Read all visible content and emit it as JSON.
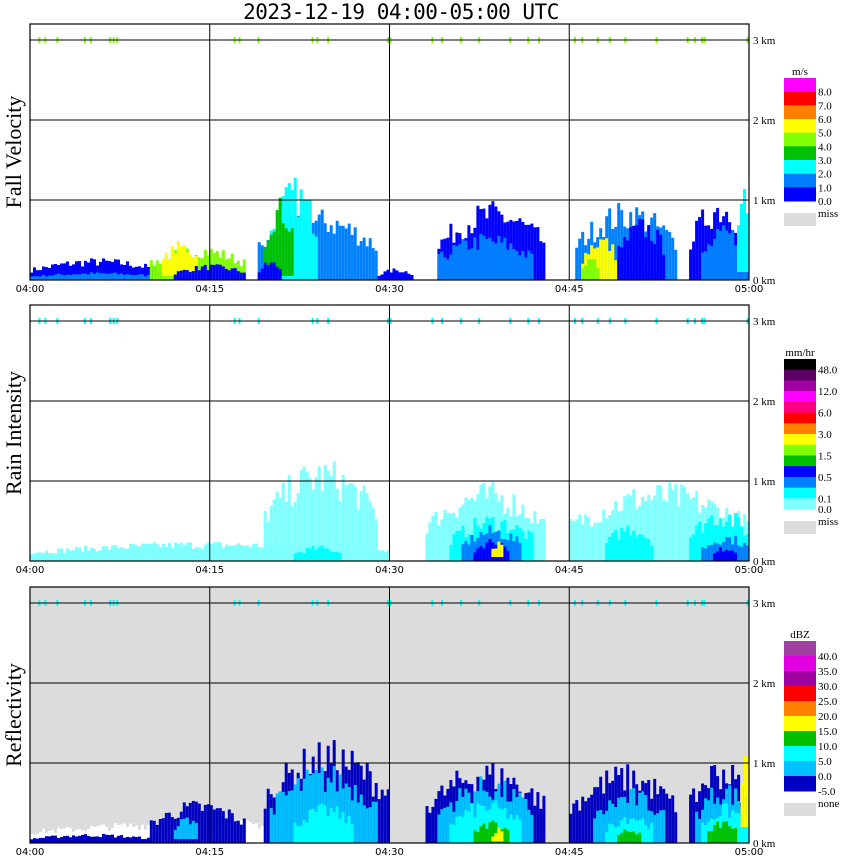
{
  "title": "2023-12-19   04:00-05:00 UTC",
  "chart_data": [
    {
      "type": "heatmap",
      "name": "fall-velocity",
      "ylabel": "Fall Velocity",
      "x_ticks": [
        "04:00",
        "04:15",
        "04:30",
        "04:45",
        "05:00"
      ],
      "x_range_minutes": [
        0,
        60
      ],
      "y_ticks": [
        "0 km",
        "1 km",
        "2 km",
        "3 km"
      ],
      "y_range_km": [
        0,
        3.2
      ],
      "grid": true,
      "background": "#ffffff",
      "legend": {
        "unit": "m/s",
        "position": "right",
        "colors": [
          "#ff00ff",
          "#ff0000",
          "#ff7f00",
          "#ffff00",
          "#7fff00",
          "#00c000",
          "#00ffff",
          "#0080ff",
          "#0000ff"
        ],
        "labels": [
          "8.0",
          "7.0",
          "6.0",
          "5.0",
          "4.0",
          "3.0",
          "2.0",
          "1.0",
          "0.0"
        ],
        "missing_label": "miss",
        "missing_color": "#dcdcdc"
      },
      "regions": [
        {
          "t0": 0,
          "t1": 11,
          "h0": 0,
          "h1": 0.28,
          "c": "#0000ff"
        },
        {
          "t0": 0,
          "t1": 11,
          "h0": 0,
          "h1": 0.1,
          "c": "#0080ff"
        },
        {
          "t0": 10,
          "t1": 18,
          "h0": 0,
          "h1": 0.45,
          "c": "#7fff00"
        },
        {
          "t0": 11,
          "t1": 14,
          "h0": 0.05,
          "h1": 0.5,
          "c": "#ffff00"
        },
        {
          "t0": 12,
          "t1": 18,
          "h0": 0,
          "h1": 0.2,
          "c": "#0000ff"
        },
        {
          "t0": 19,
          "t1": 29,
          "h0": 0,
          "h1": 0.9,
          "c": "#0080ff"
        },
        {
          "t0": 20,
          "t1": 24,
          "h0": 0,
          "h1": 1.3,
          "c": "#00ffff"
        },
        {
          "t0": 19.5,
          "t1": 22,
          "h0": 0.05,
          "h1": 1.05,
          "c": "#00c000"
        },
        {
          "t0": 19,
          "t1": 21,
          "h0": 0,
          "h1": 0.25,
          "c": "#0000ff"
        },
        {
          "t0": 29,
          "t1": 32,
          "h0": 0,
          "h1": 0.15,
          "c": "#0000ff"
        },
        {
          "t0": 34,
          "t1": 43,
          "h0": 0,
          "h1": 1.0,
          "c": "#0000ff"
        },
        {
          "t0": 34,
          "t1": 42,
          "h0": 0,
          "h1": 0.6,
          "c": "#0080ff"
        },
        {
          "t0": 45.5,
          "t1": 54,
          "h0": 0,
          "h1": 1.0,
          "c": "#0080ff"
        },
        {
          "t0": 46,
          "t1": 49,
          "h0": 0,
          "h1": 0.6,
          "c": "#ffff00"
        },
        {
          "t0": 46,
          "t1": 47.5,
          "h0": 0,
          "h1": 0.3,
          "c": "#7fff00"
        },
        {
          "t0": 49,
          "t1": 53,
          "h0": 0,
          "h1": 0.8,
          "c": "#0000ff"
        },
        {
          "t0": 55,
          "t1": 60,
          "h0": 0,
          "h1": 1.1,
          "c": "#0000ff"
        },
        {
          "t0": 56,
          "t1": 60,
          "h0": 0,
          "h1": 0.7,
          "c": "#0080ff"
        },
        {
          "t0": 59,
          "t1": 60,
          "h0": 0.1,
          "h1": 1.4,
          "c": "#00ffff"
        }
      ],
      "top_marks_color": "#7fff00"
    },
    {
      "type": "heatmap",
      "name": "rain-intensity",
      "ylabel": "Rain Intensity",
      "x_ticks": [
        "04:00",
        "04:15",
        "04:30",
        "04:45",
        "05:00"
      ],
      "x_range_minutes": [
        0,
        60
      ],
      "y_ticks": [
        "0 km",
        "1 km",
        "2 km",
        "3 km"
      ],
      "y_range_km": [
        0,
        3.2
      ],
      "grid": true,
      "background": "#ffffff",
      "legend": {
        "unit": "mm/hr",
        "position": "right",
        "colors": [
          "#000000",
          "#5a0060",
          "#a000a0",
          "#ff00ff",
          "#ff0080",
          "#ff0000",
          "#ff7f00",
          "#ffff00",
          "#7fff00",
          "#00c000",
          "#0000ff",
          "#0080ff",
          "#00ffff",
          "#80ffff"
        ],
        "labels": [
          "48.0",
          "12.0",
          "6.0",
          "3.0",
          "1.5",
          "0.5",
          "0.1",
          "0.0"
        ],
        "missing_label": "miss",
        "missing_color": "#dcdcdc"
      },
      "regions": [
        {
          "t0": 0,
          "t1": 30,
          "h0": 0,
          "h1": 0.25,
          "c": "#80ffff"
        },
        {
          "t0": 19.5,
          "t1": 29,
          "h0": 0,
          "h1": 1.3,
          "c": "#80ffff"
        },
        {
          "t0": 22,
          "t1": 26,
          "h0": 0,
          "h1": 0.2,
          "c": "#00ffff"
        },
        {
          "t0": 33,
          "t1": 43,
          "h0": 0,
          "h1": 1.0,
          "c": "#80ffff"
        },
        {
          "t0": 35,
          "t1": 42,
          "h0": 0,
          "h1": 0.6,
          "c": "#00ffff"
        },
        {
          "t0": 36,
          "t1": 41,
          "h0": 0,
          "h1": 0.45,
          "c": "#0080ff"
        },
        {
          "t0": 37,
          "t1": 40,
          "h0": 0,
          "h1": 0.3,
          "c": "#0000ff"
        },
        {
          "t0": 38.5,
          "t1": 39.5,
          "h0": 0.05,
          "h1": 0.25,
          "c": "#ffff00"
        },
        {
          "t0": 45,
          "t1": 60,
          "h0": 0,
          "h1": 1.0,
          "c": "#80ffff"
        },
        {
          "t0": 48,
          "t1": 52,
          "h0": 0,
          "h1": 0.5,
          "c": "#00ffff"
        },
        {
          "t0": 55,
          "t1": 60,
          "h0": 0,
          "h1": 0.7,
          "c": "#00ffff"
        },
        {
          "t0": 56,
          "t1": 60,
          "h0": 0,
          "h1": 0.35,
          "c": "#0080ff"
        },
        {
          "t0": 57,
          "t1": 59,
          "h0": 0,
          "h1": 0.2,
          "c": "#0000ff"
        }
      ],
      "top_marks_color": "#00ffff"
    },
    {
      "type": "heatmap",
      "name": "reflectivity",
      "ylabel": "Reflectivity",
      "x_ticks": [
        "04:00",
        "04:15",
        "04:30",
        "04:45",
        "05:00"
      ],
      "x_range_minutes": [
        0,
        60
      ],
      "y_ticks": [
        "0 km",
        "1 km",
        "2 km",
        "3 km"
      ],
      "y_range_km": [
        0,
        3.2
      ],
      "grid": true,
      "background": "#dcdcdc",
      "legend": {
        "unit": "dBZ",
        "position": "right",
        "colors": [
          "#a040a0",
          "#e000e0",
          "#a000a0",
          "#ff0000",
          "#ff7f00",
          "#ffff00",
          "#00c000",
          "#00ffff",
          "#00c0ff",
          "#0000c0"
        ],
        "labels": [
          "40.0",
          "35.0",
          "30.0",
          "25.0",
          "20.0",
          "15.0",
          "10.0",
          "5.0",
          "0.0",
          "-5.0"
        ],
        "missing_label": "none",
        "missing_color": "#dcdcdc"
      },
      "regions": [
        {
          "t0": 0,
          "t1": 30,
          "h0": 0,
          "h1": 0.3,
          "c": "#ffffff"
        },
        {
          "t0": 0,
          "t1": 10,
          "h0": 0,
          "h1": 0.12,
          "c": "#0000c0"
        },
        {
          "t0": 10,
          "t1": 18,
          "h0": 0,
          "h1": 0.55,
          "c": "#0000c0"
        },
        {
          "t0": 12,
          "t1": 14,
          "h0": 0.05,
          "h1": 0.35,
          "c": "#00c0ff"
        },
        {
          "t0": 19.5,
          "t1": 30,
          "h0": 0,
          "h1": 1.3,
          "c": "#0000c0"
        },
        {
          "t0": 20,
          "t1": 29,
          "h0": 0,
          "h1": 1.0,
          "c": "#00c0ff"
        },
        {
          "t0": 22,
          "t1": 27,
          "h0": 0,
          "h1": 0.5,
          "c": "#00ffff"
        },
        {
          "t0": 33,
          "t1": 43,
          "h0": 0,
          "h1": 1.05,
          "c": "#0000c0"
        },
        {
          "t0": 34,
          "t1": 42,
          "h0": 0,
          "h1": 0.85,
          "c": "#00c0ff"
        },
        {
          "t0": 35,
          "t1": 41,
          "h0": 0,
          "h1": 0.55,
          "c": "#00ffff"
        },
        {
          "t0": 37,
          "t1": 40,
          "h0": 0,
          "h1": 0.3,
          "c": "#00c000"
        },
        {
          "t0": 38.5,
          "t1": 39.5,
          "h0": 0.02,
          "h1": 0.2,
          "c": "#ffff00"
        },
        {
          "t0": 45,
          "t1": 54,
          "h0": 0,
          "h1": 1.0,
          "c": "#0000c0"
        },
        {
          "t0": 47,
          "t1": 53,
          "h0": 0,
          "h1": 0.7,
          "c": "#00c0ff"
        },
        {
          "t0": 48,
          "t1": 52,
          "h0": 0,
          "h1": 0.4,
          "c": "#00ffff"
        },
        {
          "t0": 49,
          "t1": 51,
          "h0": 0,
          "h1": 0.2,
          "c": "#00c000"
        },
        {
          "t0": 55,
          "t1": 60,
          "h0": 0,
          "h1": 1.1,
          "c": "#0000c0"
        },
        {
          "t0": 55.5,
          "t1": 60,
          "h0": 0,
          "h1": 0.8,
          "c": "#00c0ff"
        },
        {
          "t0": 56,
          "t1": 60,
          "h0": 0,
          "h1": 0.5,
          "c": "#00ffff"
        },
        {
          "t0": 56.5,
          "t1": 59,
          "h0": 0,
          "h1": 0.3,
          "c": "#00c000"
        },
        {
          "t0": 59.3,
          "t1": 60,
          "h0": 0.2,
          "h1": 1.2,
          "c": "#ffff00"
        }
      ],
      "top_marks_color": "#00ffff"
    }
  ],
  "top_mark_minutes": [
    0.7,
    1.2,
    2.2,
    4.5,
    5.0,
    6.6,
    6.9,
    7.2,
    17.0,
    17.4,
    19.0,
    23.5,
    23.9,
    24.8,
    29.8,
    30.0,
    33.5,
    34.3,
    35.9,
    37.4,
    40.0,
    41.5,
    42.4,
    45.4,
    46.0,
    47.3,
    48.3,
    49.6,
    52.2,
    54.8,
    55.4,
    56.0,
    56.2,
    59.8
  ]
}
